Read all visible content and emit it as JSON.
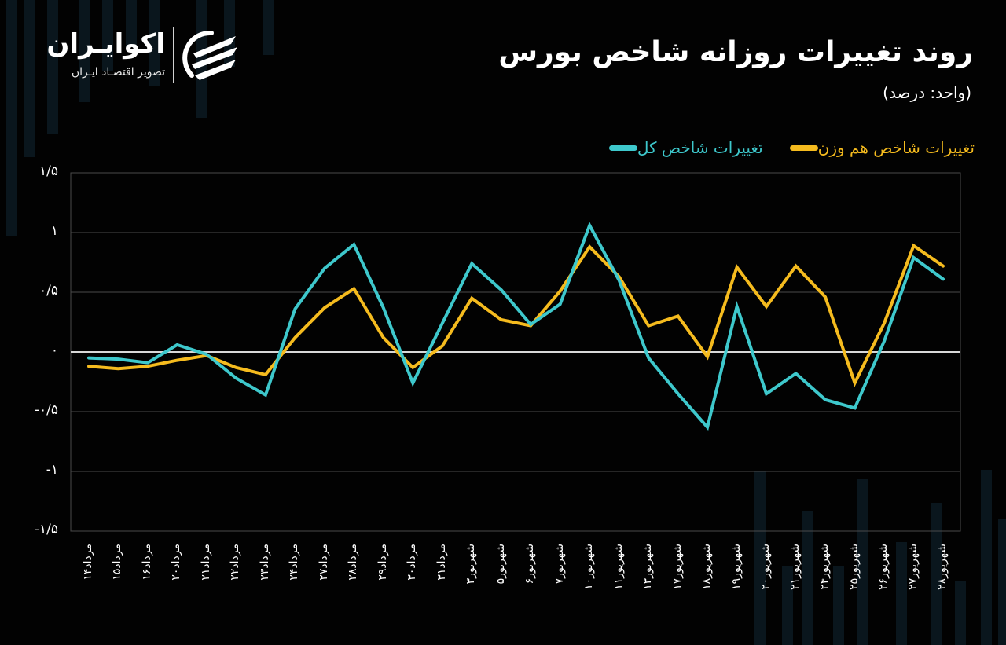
{
  "header": {
    "title": "روند تغییرات روزانه شاخص بورس",
    "subtitle": "(واحد: درصد)"
  },
  "brand": {
    "name": "اکوایـران",
    "tagline": "تصویر اقتصـاد ایـران",
    "icon": "ecoiran-logo-icon"
  },
  "colors": {
    "background": "#020202",
    "total_index": "#3ec8cc",
    "equal_weight": "#f5bb1e",
    "grid": "#4a4a4a",
    "zero_line": "#d8d8d8",
    "bg_bars": "#0c1c24"
  },
  "legend": [
    {
      "label": "تغییرات شاخص کل",
      "color": "#3ec8cc"
    },
    {
      "label": "تغییرات شاخص هم وزن",
      "color": "#f5bb1e"
    }
  ],
  "chart_data": {
    "type": "line",
    "title": "روند تغییرات روزانه شاخص بورس",
    "subtitle": "(واحد: درصد)",
    "xlabel": "",
    "ylabel": "درصد",
    "ylim": [
      -1.5,
      1.5
    ],
    "grid": true,
    "legend_position": "top-right",
    "y_ticks": [
      {
        "value": 1.5,
        "label": "۱/۵"
      },
      {
        "value": 1,
        "label": "۱"
      },
      {
        "value": 0.5,
        "label": "۰/۵"
      },
      {
        "value": 0,
        "label": "۰"
      },
      {
        "value": -0.5,
        "label": "-۰/۵"
      },
      {
        "value": -1,
        "label": "-۱"
      },
      {
        "value": -1.5,
        "label": "-۱/۵"
      }
    ],
    "categories": [
      "مرداد۱۴",
      "مرداد۱۵",
      "مرداد۱۶",
      "مرداد۲۰",
      "مرداد۲۱",
      "مرداد۲۲",
      "مرداد۲۳",
      "مرداد۲۴",
      "مرداد۲۷",
      "مرداد۲۸",
      "مرداد۲۹",
      "مرداد۳۰",
      "مرداد۳۱",
      "شهریور۳",
      "شهریور۵",
      "شهریور۶",
      "شهریور۷",
      "شهریور۱۰",
      "شهریور۱۱",
      "شهریور۱۳",
      "شهریور۱۷",
      "شهریور۱۸",
      "شهریور۱۹",
      "شهریور۲۰",
      "شهریور۲۱",
      "شهریور۲۴",
      "شهریور۲۵",
      "شهریور۲۶",
      "شهریور۲۷",
      "شهریور۲۸"
    ],
    "series": [
      {
        "name": "تغییرات شاخص کل",
        "color": "#3ec8cc",
        "values": [
          -0.05,
          -0.06,
          -0.09,
          0.06,
          -0.02,
          -0.22,
          -0.36,
          0.36,
          0.7,
          0.9,
          0.37,
          -0.26,
          0.24,
          0.74,
          0.52,
          0.23,
          0.4,
          1.06,
          0.6,
          -0.05,
          -0.35,
          -0.63,
          0.38,
          -0.35,
          -0.18,
          -0.4,
          -0.47,
          0.09,
          0.79,
          0.61
        ]
      },
      {
        "name": "تغییرات شاخص هم وزن",
        "color": "#f5bb1e",
        "values": [
          -0.12,
          -0.14,
          -0.12,
          -0.07,
          -0.03,
          -0.13,
          -0.19,
          0.12,
          0.37,
          0.53,
          0.12,
          -0.13,
          0.05,
          0.45,
          0.27,
          0.22,
          0.51,
          0.88,
          0.63,
          0.22,
          0.3,
          -0.04,
          0.71,
          0.38,
          0.72,
          0.46,
          -0.26,
          0.24,
          0.89,
          0.72
        ]
      }
    ]
  }
}
